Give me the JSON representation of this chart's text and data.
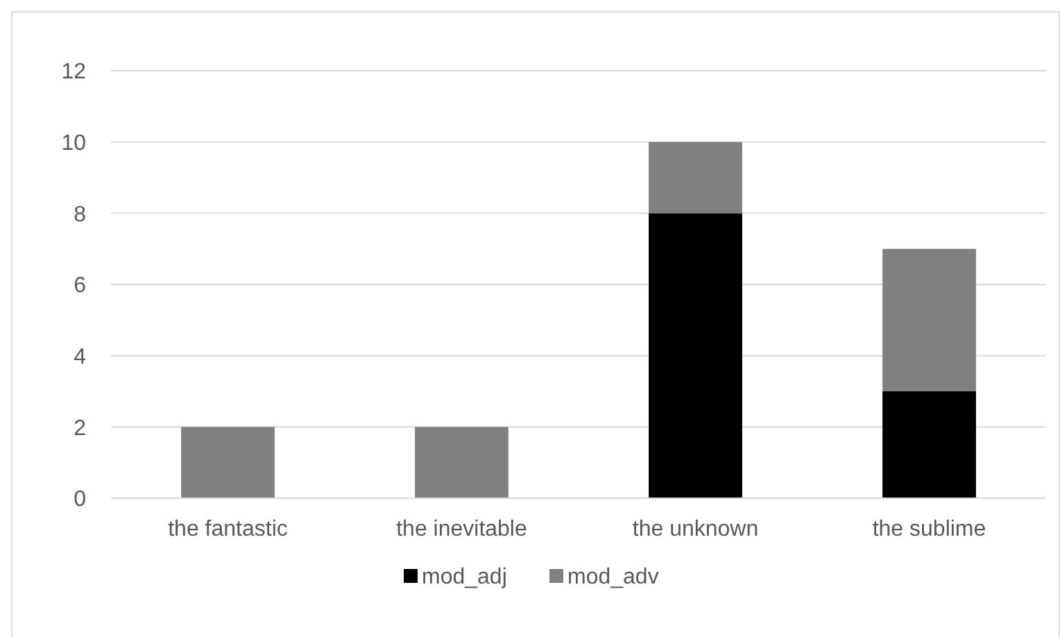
{
  "chart_data": {
    "type": "bar",
    "stacked": true,
    "categories": [
      "the fantastic",
      "the inevitable",
      "the unknown",
      "the sublime"
    ],
    "series": [
      {
        "name": "mod_adj",
        "color": "#000000",
        "values": [
          0,
          0,
          8,
          3
        ]
      },
      {
        "name": "mod_adv",
        "color": "#808080",
        "values": [
          2,
          2,
          2,
          4
        ]
      }
    ],
    "ylim": [
      0,
      12
    ],
    "yticks": [
      0,
      2,
      4,
      6,
      8,
      10,
      12
    ],
    "grid": "y",
    "legend": "bottom"
  }
}
